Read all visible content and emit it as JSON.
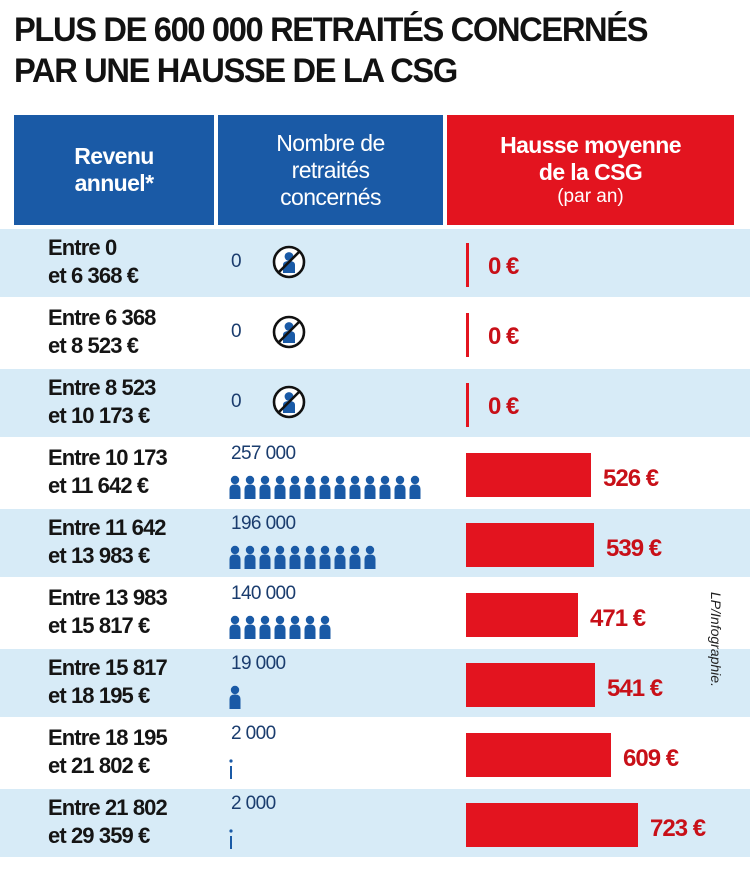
{
  "title": {
    "line1": "PLUS DE 600 000 RETRAITÉS CONCERNÉS",
    "line2": "PAR UNE HAUSSE DE LA CSG"
  },
  "headers": {
    "revenue": {
      "line1": "Revenu",
      "line2": "annuel*"
    },
    "count": {
      "line1": "Nombre de",
      "line2": "retraités",
      "line3": "concernés"
    },
    "increase": {
      "line1": "Hausse moyenne",
      "line2": "de la CSG",
      "line3": "(par an)"
    }
  },
  "credit": "LP/Infographie.",
  "colors": {
    "blue": "#1a5aa6",
    "red": "#e3141f",
    "light_blue": "#d7ebf7"
  },
  "chart_data": {
    "type": "table",
    "columns": [
      "Revenu annuel*",
      "Nombre de retraités concernés",
      "Hausse moyenne de la CSG (par an)"
    ],
    "rows": [
      {
        "line1": "Entre 0",
        "line2": "et 6 368 €",
        "count_label": "0",
        "count": 0,
        "increase_label": "0 €",
        "increase": 0
      },
      {
        "line1": "Entre 6 368",
        "line2": "et 8 523 €",
        "count_label": "0",
        "count": 0,
        "increase_label": "0 €",
        "increase": 0
      },
      {
        "line1": "Entre 8 523",
        "line2": "et 10 173 €",
        "count_label": "0",
        "count": 0,
        "increase_label": "0 €",
        "increase": 0
      },
      {
        "line1": "Entre 10 173",
        "line2": "et 11 642 €",
        "count_label": "257 000",
        "count": 257000,
        "increase_label": "526 €",
        "increase": 526
      },
      {
        "line1": "Entre 11 642",
        "line2": "et 13 983 €",
        "count_label": "196 000",
        "count": 196000,
        "increase_label": "539 €",
        "increase": 539
      },
      {
        "line1": "Entre 13 983",
        "line2": "et 15 817 €",
        "count_label": "140 000",
        "count": 140000,
        "increase_label": "471 €",
        "increase": 471
      },
      {
        "line1": "Entre 15 817",
        "line2": "et 18 195 €",
        "count_label": "19 000",
        "count": 19000,
        "increase_label": "541 €",
        "increase": 541
      },
      {
        "line1": "Entre 18 195",
        "line2": "et 21 802 €",
        "count_label": "2 000",
        "count": 2000,
        "increase_label": "609 €",
        "increase": 609
      },
      {
        "line1": "Entre 21 802",
        "line2": "et 29 359 €",
        "count_label": "2 000",
        "count": 2000,
        "increase_label": "723 €",
        "increase": 723
      }
    ]
  }
}
